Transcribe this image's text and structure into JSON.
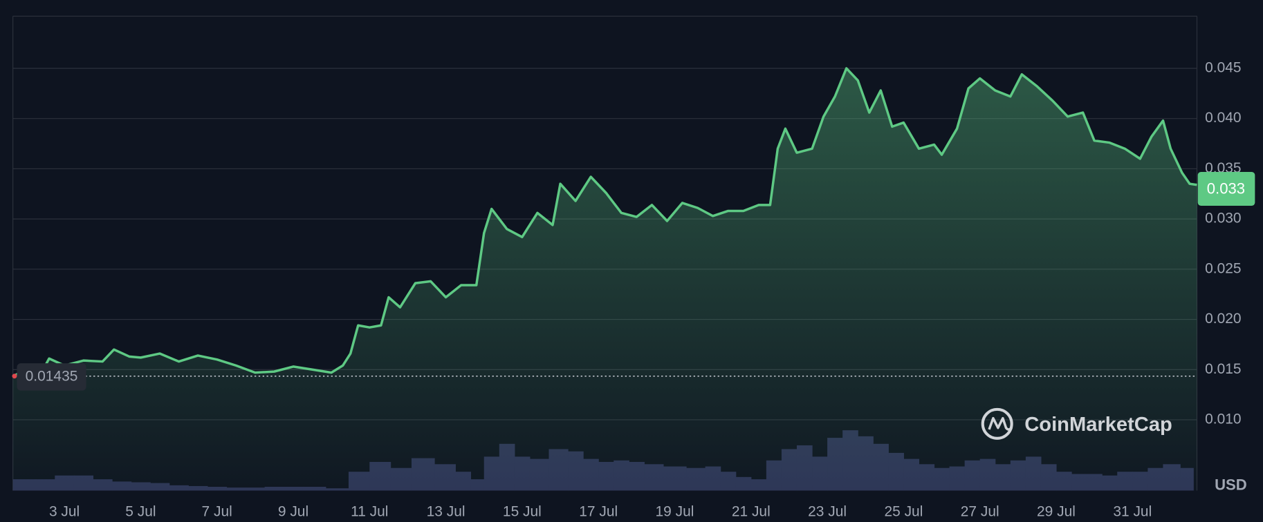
{
  "chart_data": {
    "type": "area",
    "color": "#5ec984",
    "x": [
      1.65,
      2.0,
      2.5,
      2.6,
      3.0,
      3.5,
      4.0,
      4.3,
      4.7,
      5.0,
      5.5,
      6.0,
      6.5,
      7.0,
      7.5,
      8.0,
      8.5,
      9.0,
      9.5,
      10.0,
      10.3,
      10.5,
      10.7,
      11.0,
      11.3,
      11.5,
      11.8,
      12.2,
      12.6,
      13.0,
      13.4,
      13.8,
      14.0,
      14.2,
      14.6,
      15.0,
      15.4,
      15.8,
      16.0,
      16.4,
      16.8,
      17.2,
      17.6,
      18.0,
      18.4,
      18.8,
      19.2,
      19.6,
      20.0,
      20.4,
      20.8,
      21.2,
      21.5,
      21.7,
      21.9,
      22.2,
      22.6,
      22.9,
      23.2,
      23.5,
      23.8,
      24.1,
      24.4,
      24.7,
      25.0,
      25.4,
      25.8,
      26.0,
      26.4,
      26.7,
      27.0,
      27.4,
      27.8,
      28.1,
      28.5,
      28.9,
      29.3,
      29.7,
      30.0,
      30.4,
      30.8,
      31.2,
      31.5,
      31.8,
      32.0,
      32.3,
      32.5,
      32.69
    ],
    "values": [
      0.01433,
      0.015,
      0.0154,
      0.0161,
      0.0154,
      0.0159,
      0.0158,
      0.017,
      0.0163,
      0.0162,
      0.0166,
      0.0158,
      0.0164,
      0.016,
      0.0154,
      0.0147,
      0.0148,
      0.0153,
      0.015,
      0.0147,
      0.0154,
      0.0166,
      0.0194,
      0.0192,
      0.0194,
      0.0222,
      0.0212,
      0.0236,
      0.0238,
      0.0222,
      0.0234,
      0.0234,
      0.0286,
      0.031,
      0.029,
      0.0282,
      0.0306,
      0.0294,
      0.0335,
      0.0318,
      0.0342,
      0.0326,
      0.0306,
      0.0302,
      0.0314,
      0.0298,
      0.0316,
      0.0311,
      0.0303,
      0.0308,
      0.0308,
      0.0314,
      0.0314,
      0.037,
      0.039,
      0.0366,
      0.037,
      0.0402,
      0.0422,
      0.045,
      0.0438,
      0.0406,
      0.0428,
      0.0392,
      0.0396,
      0.037,
      0.0374,
      0.0364,
      0.039,
      0.043,
      0.044,
      0.0428,
      0.0422,
      0.0444,
      0.0432,
      0.0418,
      0.0402,
      0.0406,
      0.0378,
      0.0376,
      0.037,
      0.036,
      0.0382,
      0.0398,
      0.037,
      0.0346,
      0.0335,
      0.0334
    ],
    "volume": {
      "color": "#2d3456",
      "x": [
        2.0,
        2.5,
        3.0,
        3.5,
        4.0,
        4.5,
        5.0,
        5.5,
        6.0,
        6.5,
        7.0,
        7.5,
        8.0,
        8.5,
        9.0,
        9.5,
        10.2,
        10.7,
        11.3,
        11.8,
        12.4,
        13.0,
        13.5,
        13.8,
        14.2,
        14.6,
        15.0,
        15.4,
        16.0,
        16.4,
        16.8,
        17.2,
        17.6,
        18.0,
        18.4,
        19.0,
        19.6,
        20.0,
        20.4,
        20.8,
        21.2,
        21.6,
        22.0,
        22.4,
        22.8,
        23.2,
        23.6,
        24.0,
        24.4,
        24.8,
        25.2,
        25.6,
        26.0,
        26.4,
        26.8,
        27.2,
        27.6,
        28.0,
        28.4,
        28.8,
        29.2,
        29.6,
        30.0,
        30.4,
        30.8,
        31.2,
        31.6,
        32.0,
        32.5
      ],
      "values": [
        15,
        15,
        20,
        20,
        15,
        12,
        11,
        10,
        7,
        6,
        5,
        4,
        4,
        5,
        5,
        5,
        3,
        25,
        38,
        30,
        43,
        35,
        25,
        15,
        45,
        62,
        45,
        42,
        55,
        52,
        42,
        38,
        40,
        38,
        35,
        32,
        30,
        32,
        25,
        18,
        15,
        40,
        55,
        60,
        45,
        70,
        80,
        72,
        62,
        50,
        42,
        35,
        30,
        32,
        40,
        42,
        35,
        40,
        45,
        35,
        25,
        22,
        22,
        20,
        25,
        25,
        30,
        35,
        30
      ]
    },
    "xlim": [
      1.65,
      32.69
    ],
    "ylim": [
      0.00295,
      0.0502
    ],
    "xticks": [
      {
        "value": 3,
        "label": "3 Jul"
      },
      {
        "value": 5,
        "label": "5 Jul"
      },
      {
        "value": 7,
        "label": "7 Jul"
      },
      {
        "value": 9,
        "label": "9 Jul"
      },
      {
        "value": 11,
        "label": "11 Jul"
      },
      {
        "value": 13,
        "label": "13 Jul"
      },
      {
        "value": 15,
        "label": "15 Jul"
      },
      {
        "value": 17,
        "label": "17 Jul"
      },
      {
        "value": 19,
        "label": "19 Jul"
      },
      {
        "value": 21,
        "label": "21 Jul"
      },
      {
        "value": 23,
        "label": "23 Jul"
      },
      {
        "value": 25,
        "label": "25 Jul"
      },
      {
        "value": 27,
        "label": "27 Jul"
      },
      {
        "value": 29,
        "label": "29 Jul"
      },
      {
        "value": 31,
        "label": "31 Jul"
      }
    ],
    "yticks": [
      {
        "value": 0.01,
        "label": "0.010"
      },
      0.015,
      {
        "value": 0.02,
        "label": "0.020"
      },
      0.025,
      {
        "value": 0.03,
        "label": "0.030"
      },
      0.035,
      {
        "value": 0.04,
        "label": "0.040"
      },
      0.045
    ],
    "grid": true,
    "reference_price": 0.01435,
    "current_price": 0.033,
    "currency": "USD",
    "watermark": "CoinMarketCap"
  }
}
